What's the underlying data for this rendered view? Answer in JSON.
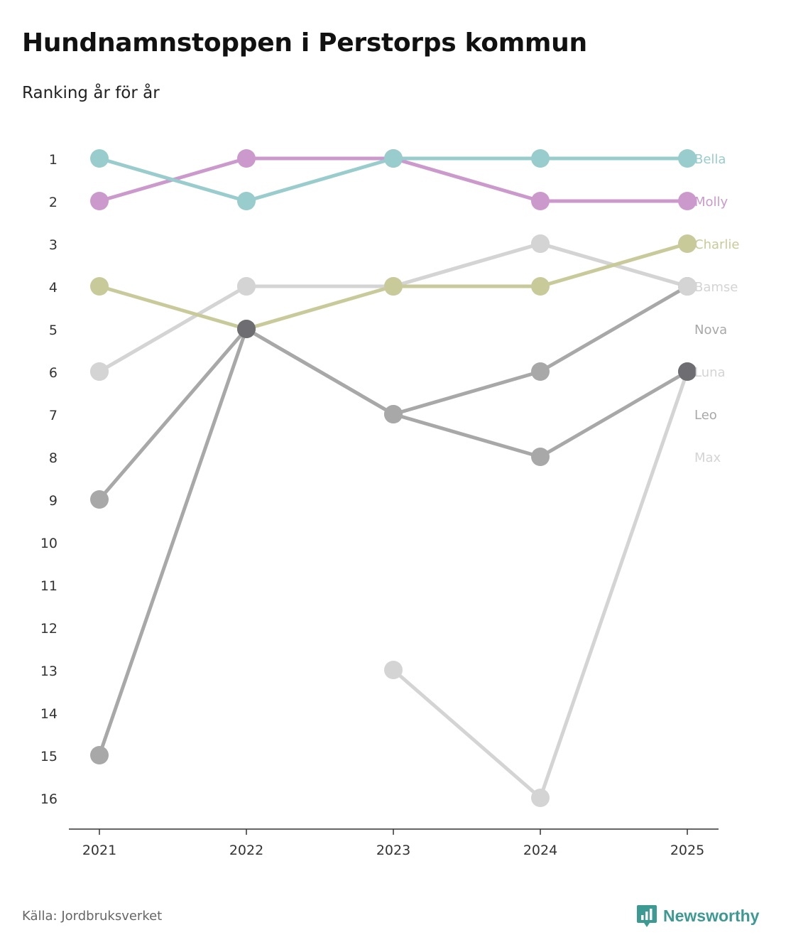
{
  "title": "Hundnamnstoppen i Perstorps kommun",
  "subtitle": "Ranking år för år",
  "source": "Källa: Jordbruksverket",
  "brand": {
    "name": "Newsworthy",
    "icon": "newsworthy-logo-icon",
    "color": "#3d9a93"
  },
  "chart_data": {
    "type": "line",
    "subtype": "bump",
    "x": [
      "2021",
      "2022",
      "2023",
      "2024",
      "2025"
    ],
    "y_ticks": [
      "1",
      "2",
      "3",
      "4",
      "5",
      "6",
      "7",
      "8",
      "9",
      "10",
      "11",
      "12",
      "13",
      "14",
      "15",
      "16"
    ],
    "ylim": [
      1,
      16
    ],
    "y_inverted": true,
    "grid": false,
    "series": [
      {
        "name": "Max",
        "color": "#d4d4d4",
        "values": [
          null,
          null,
          13,
          16,
          6
        ]
      },
      {
        "name": "Leo",
        "color": "#a8a8a8",
        "values": [
          9,
          5,
          7,
          8,
          6
        ]
      },
      {
        "name": "Luna",
        "color": "#d4d4d4",
        "values": [
          6,
          4,
          4,
          3,
          4
        ]
      },
      {
        "name": "Nova",
        "color": "#a8a8a8",
        "values": [
          15,
          5,
          7,
          6,
          4
        ]
      },
      {
        "name": "Bamse",
        "color": "#d4d4d4",
        "values": [
          6,
          4,
          4,
          3,
          4
        ]
      },
      {
        "name": "Charlie",
        "color": "#c9ca9a",
        "values": [
          4,
          5,
          4,
          4,
          3
        ]
      },
      {
        "name": "Molly",
        "color": "#cc99cc",
        "values": [
          2,
          1,
          1,
          2,
          2
        ]
      },
      {
        "name": "Bella",
        "color": "#99cccc",
        "values": [
          1,
          2,
          1,
          1,
          1
        ]
      }
    ],
    "legend_order": [
      "Bella",
      "Molly",
      "Charlie",
      "Bamse",
      "Nova",
      "Luna",
      "Leo",
      "Max"
    ],
    "legend_placement": "right",
    "highlight_points": [
      {
        "x": "2022",
        "y": 5,
        "color": "#6d6d72"
      },
      {
        "x": "2025",
        "y": 6,
        "color": "#6d6d72"
      }
    ]
  }
}
